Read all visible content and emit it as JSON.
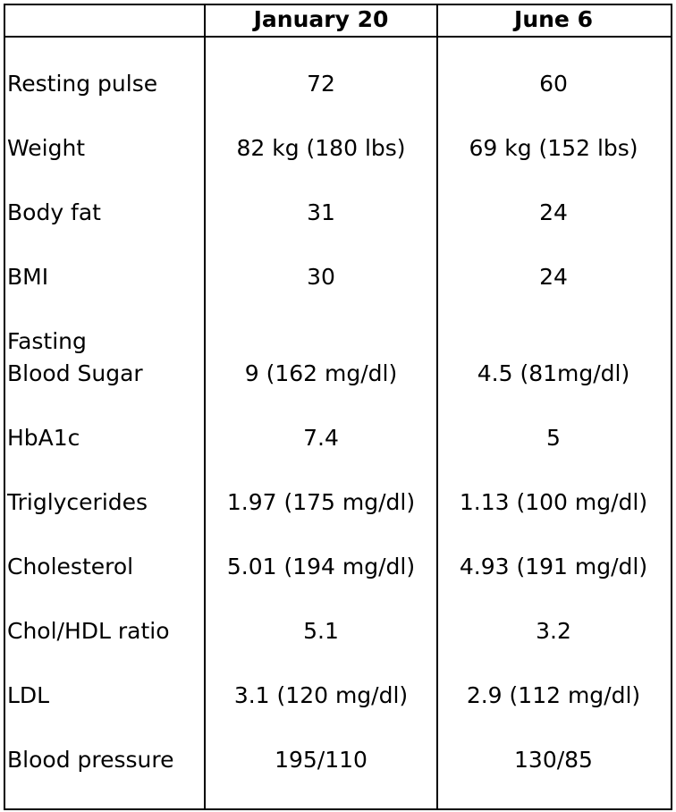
{
  "table": {
    "columns": [
      "January 20",
      "June 6"
    ],
    "rows": [
      {
        "label": "Resting pulse",
        "values": [
          "72",
          "60"
        ]
      },
      {
        "label": "Weight",
        "values": [
          "82 kg (180 lbs)",
          "69 kg (152 lbs)"
        ]
      },
      {
        "label": "Body fat",
        "values": [
          "31",
          "24"
        ]
      },
      {
        "label": "BMI",
        "values": [
          "30",
          "24"
        ]
      },
      {
        "label": "Fasting\nBlood Sugar",
        "values": [
          "9 (162 mg/dl)",
          "4.5 (81mg/dl)"
        ]
      },
      {
        "label": "HbA1c",
        "values": [
          "7.4",
          "5"
        ]
      },
      {
        "label": "Triglycerides",
        "values": [
          "1.97 (175 mg/dl)",
          "1.13 (100 mg/dl)"
        ]
      },
      {
        "label": "Cholesterol",
        "values": [
          "5.01 (194 mg/dl)",
          "4.93 (191 mg/dl)"
        ]
      },
      {
        "label": "Chol/HDL ratio",
        "values": [
          "5.1",
          "3.2"
        ]
      },
      {
        "label": "LDL",
        "values": [
          "3.1 (120 mg/dl)",
          "2.9 (112 mg/dl)"
        ]
      },
      {
        "label": "Blood pressure",
        "values": [
          "195/110",
          "130/85"
        ]
      }
    ]
  }
}
